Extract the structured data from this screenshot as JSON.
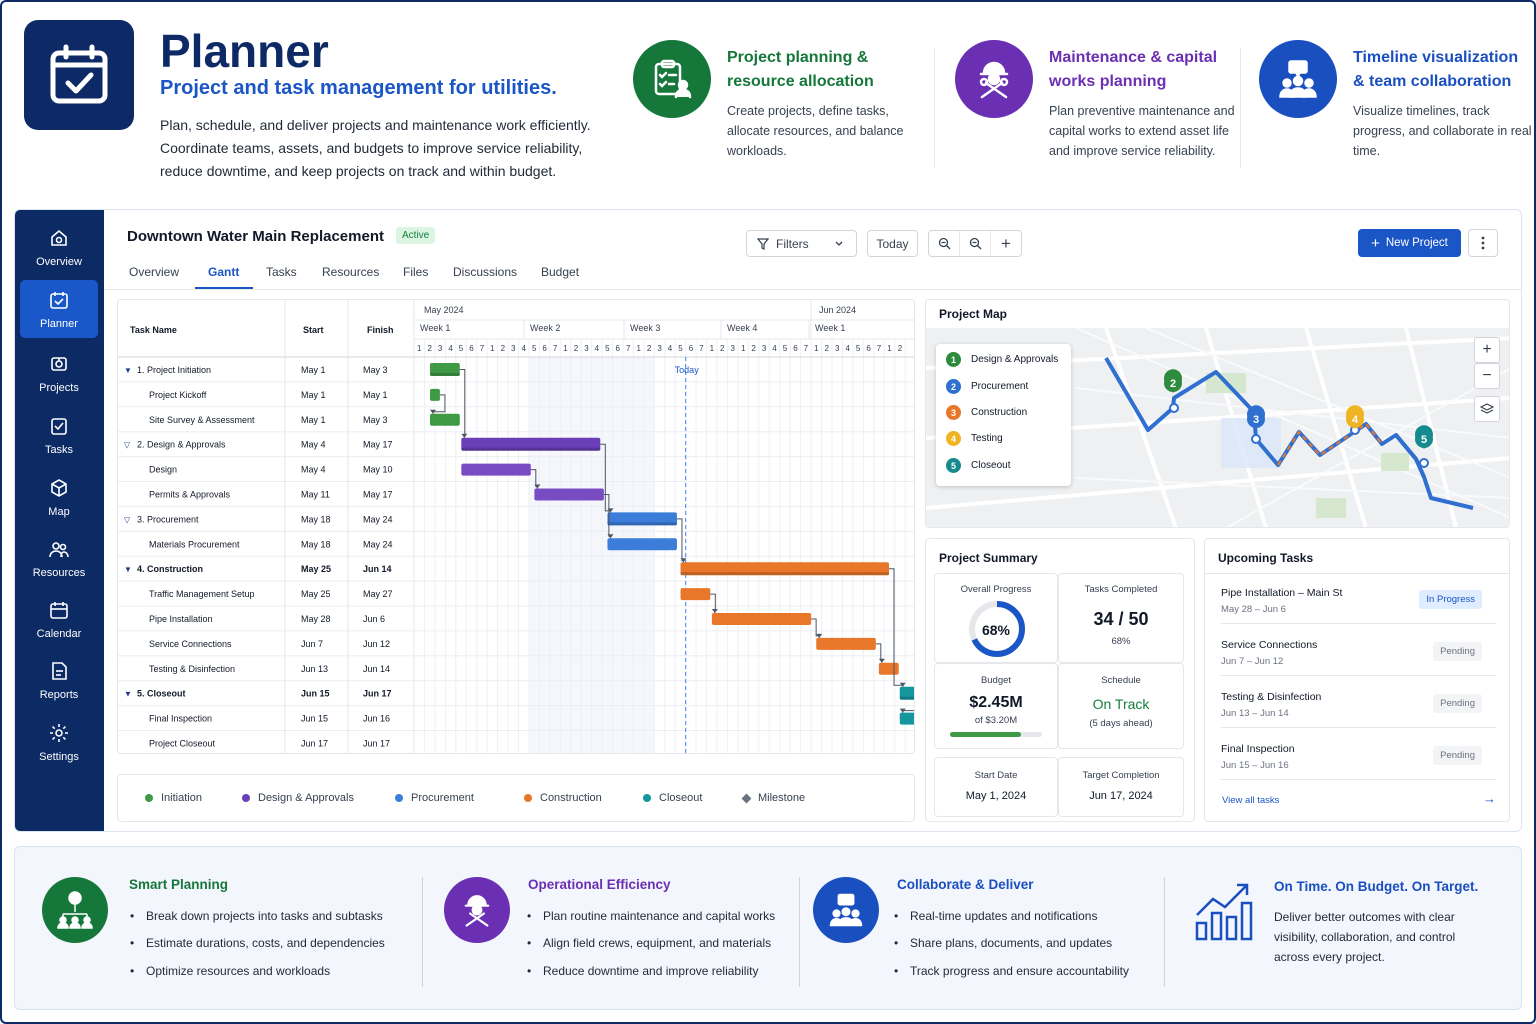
{
  "hero": {
    "title": "Planner",
    "subtitle": "Project and task management for utilities.",
    "description": "Plan, schedule, and deliver projects and maintenance work efficiently. Coordinate teams, assets, and budgets to improve service reliability, reduce downtime, and keep projects on track and within budget."
  },
  "features": [
    {
      "title": "Project planning & resource allocation",
      "desc": "Create projects, define tasks, allocate resources, and balance workloads.",
      "color": "#16773a",
      "icon": "checklist-user-icon"
    },
    {
      "title": "Maintenance & capital works planning",
      "desc": "Plan preventive maintenance and capital works to extend asset life and improve service reliability.",
      "color": "#6b2fb3",
      "icon": "worker-tools-icon"
    },
    {
      "title": "Timeline visualization & team collaboration",
      "desc": "Visualize timelines, track progress, and collaborate in real time.",
      "color": "#1a4fc0",
      "icon": "team-chat-icon"
    }
  ],
  "sidebar": {
    "items": [
      {
        "label": "Overview",
        "icon": "home-icon"
      },
      {
        "label": "Planner",
        "icon": "calendar-check-icon"
      },
      {
        "label": "Projects",
        "icon": "projects-icon"
      },
      {
        "label": "Tasks",
        "icon": "tasks-icon"
      },
      {
        "label": "Map",
        "icon": "map-cube-icon"
      },
      {
        "label": "Resources",
        "icon": "people-icon"
      },
      {
        "label": "Calendar",
        "icon": "calendar-icon"
      },
      {
        "label": "Reports",
        "icon": "report-icon"
      },
      {
        "label": "Settings",
        "icon": "gear-icon"
      }
    ]
  },
  "project": {
    "title": "Downtown Water Main Replacement",
    "status": "Active"
  },
  "tabs": [
    "Overview",
    "Gantt",
    "Tasks",
    "Resources",
    "Files",
    "Discussions",
    "Budget"
  ],
  "toolbar": {
    "filters": "Filters",
    "today": "Today",
    "new_project": "New Project"
  },
  "gantt": {
    "headers": {
      "task": "Task Name",
      "start": "Start",
      "finish": "Finish"
    },
    "months": [
      "May 2024",
      "Jun 2024"
    ],
    "weeks": [
      "Week 1",
      "Week 2",
      "Week 3",
      "Week 4",
      "Week 1"
    ],
    "today_label": "Today",
    "rows": [
      {
        "name": "1. Project Initiation",
        "start": "May 1",
        "finish": "May 3",
        "level": 0,
        "bold": false,
        "arrow": "▼"
      },
      {
        "name": "Project Kickoff",
        "start": "May 1",
        "finish": "May 1",
        "level": 1
      },
      {
        "name": "Site Survey & Assessment",
        "start": "May 1",
        "finish": "May 3",
        "level": 1
      },
      {
        "name": "2. Design & Approvals",
        "start": "May 4",
        "finish": "May 17",
        "level": 0,
        "bold": false,
        "arrow": "▽"
      },
      {
        "name": "Design",
        "start": "May 4",
        "finish": "May 10",
        "level": 1
      },
      {
        "name": "Permits & Approvals",
        "start": "May 11",
        "finish": "May 17",
        "level": 1
      },
      {
        "name": "3. Procurement",
        "start": "May 18",
        "finish": "May 24",
        "level": 0,
        "bold": false,
        "arrow": "▽"
      },
      {
        "name": "Materials Procurement",
        "start": "May 18",
        "finish": "May 24",
        "level": 1
      },
      {
        "name": "4. Construction",
        "start": "May 25",
        "finish": "Jun 14",
        "level": 0,
        "bold": true,
        "arrow": "▼"
      },
      {
        "name": "Traffic Management Setup",
        "start": "May 25",
        "finish": "May 27",
        "level": 1
      },
      {
        "name": "Pipe Installation",
        "start": "May 28",
        "finish": "Jun 6",
        "level": 1
      },
      {
        "name": "Service Connections",
        "start": "Jun 7",
        "finish": "Jun 12",
        "level": 1
      },
      {
        "name": "Testing & Disinfection",
        "start": "Jun 13",
        "finish": "Jun 14",
        "level": 1
      },
      {
        "name": "5. Closeout",
        "start": "Jun 15",
        "finish": "Jun 17",
        "level": 0,
        "bold": true,
        "arrow": "▼"
      },
      {
        "name": "Final Inspection",
        "start": "Jun 15",
        "finish": "Jun 16",
        "level": 1
      },
      {
        "name": "Project Closeout",
        "start": "Jun 17",
        "finish": "Jun 17",
        "level": 1
      }
    ]
  },
  "legend": [
    {
      "label": "Initiation",
      "color": "#3f9a45"
    },
    {
      "label": "Design & Approvals",
      "color": "#6b3fb8"
    },
    {
      "label": "Procurement",
      "color": "#3b7dd8"
    },
    {
      "label": "Construction",
      "color": "#e8772a"
    },
    {
      "label": "Closeout",
      "color": "#1697a0"
    },
    {
      "label": "Milestone",
      "color": "#6b7280"
    }
  ],
  "map": {
    "title": "Project Map",
    "legend": [
      {
        "n": "1",
        "label": "Design & Approvals",
        "color": "#2e8b3e"
      },
      {
        "n": "2",
        "label": "Procurement",
        "color": "#2f6fd0"
      },
      {
        "n": "3",
        "label": "Construction",
        "color": "#e8772a"
      },
      {
        "n": "4",
        "label": "Testing",
        "color": "#f0b323"
      },
      {
        "n": "5",
        "label": "Closeout",
        "color": "#158a8f"
      }
    ],
    "markers": [
      "2",
      "3",
      "4",
      "5"
    ]
  },
  "summary": {
    "title": "Project Summary",
    "overall_label": "Overall Progress",
    "overall_value": "68%",
    "overall_fraction": 0.68,
    "tasks_label": "Tasks Completed",
    "tasks_value": "34 / 50",
    "tasks_pct": "68%",
    "budget_label": "Budget",
    "budget_value": "$2.45M",
    "budget_of": "of $3.20M",
    "budget_fraction": 0.77,
    "schedule_label": "Schedule",
    "schedule_value": "On Track",
    "schedule_note": "(5 days ahead)",
    "start_label": "Start Date",
    "start_value": "May 1, 2024",
    "target_label": "Target Completion",
    "target_value": "Jun 17, 2024"
  },
  "upcoming": {
    "title": "Upcoming Tasks",
    "items": [
      {
        "title": "Pipe Installation – Main St",
        "dates": "May 28 – Jun 6",
        "status": "In Progress"
      },
      {
        "title": "Service Connections",
        "dates": "Jun 7 – Jun 12",
        "status": "Pending"
      },
      {
        "title": "Testing & Disinfection",
        "dates": "Jun 13 – Jun 14",
        "status": "Pending"
      },
      {
        "title": "Final Inspection",
        "dates": "Jun 15 – Jun 16",
        "status": "Pending"
      }
    ],
    "view_all": "View all tasks"
  },
  "bottom": [
    {
      "title": "Smart Planning",
      "color": "#16773a",
      "items": [
        "Break down projects into tasks and subtasks",
        "Estimate durations, costs, and dependencies",
        "Optimize resources and workloads"
      ]
    },
    {
      "title": "Operational Efficiency",
      "color": "#6b2fb3",
      "items": [
        "Plan routine maintenance and capital works",
        "Align field crews, equipment, and materials",
        "Reduce downtime and improve reliability"
      ]
    },
    {
      "title": "Collaborate & Deliver",
      "color": "#1a4fc0",
      "items": [
        "Real-time updates and notifications",
        "Share plans, documents, and updates",
        "Track progress and ensure accountability"
      ]
    },
    {
      "title": "On Time. On Budget. On Target.",
      "color": "#1a4fc0",
      "desc": "Deliver better outcomes with clear visibility, collaboration, and control across every project."
    }
  ]
}
